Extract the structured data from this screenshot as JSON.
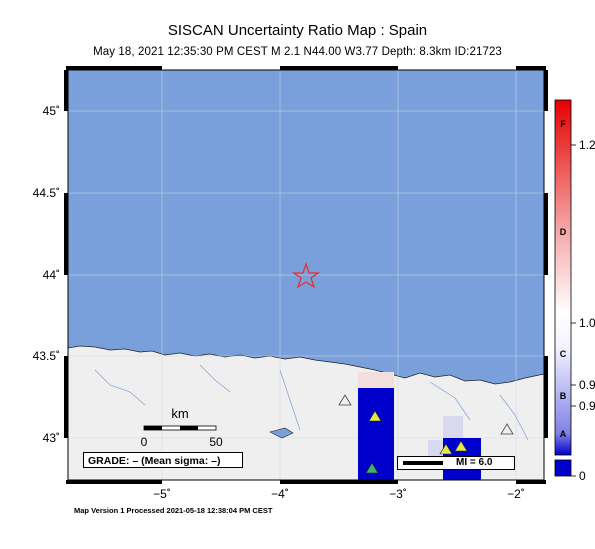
{
  "header": {
    "title": "SISCAN Uncertainty Ratio Map : Spain",
    "subtitle": "May 18, 2021 12:35:30 PM CEST   M 2.1   N44.00 W3.77   Depth: 8.3km   ID:21723"
  },
  "axes": {
    "lat_ticks": [
      "45˚",
      "44.5˚",
      "44˚",
      "43.5˚",
      "43˚"
    ],
    "lon_ticks": [
      "−5˚",
      "−4˚",
      "−3˚",
      "−2˚"
    ]
  },
  "scale_bar": {
    "unit": "km",
    "start": "0",
    "end": "50"
  },
  "grade_label": "GRADE: – (Mean sigma: –)",
  "legend_mi": "MI = 6.0",
  "colorbar": {
    "letters": [
      "F",
      "D",
      "C",
      "B",
      "A"
    ],
    "values": [
      "1.2",
      "1.0",
      "0.9",
      "0.9",
      "0"
    ]
  },
  "footer": "Map Version 1 Processed 2021-05-18 12:38:04 PM CEST",
  "epicenter": {
    "lat": 44.0,
    "lon": -3.77
  },
  "colors": {
    "sea": "#7aa0dc",
    "land": "#efefef",
    "star": "#e53030",
    "high": "#0000cc"
  }
}
